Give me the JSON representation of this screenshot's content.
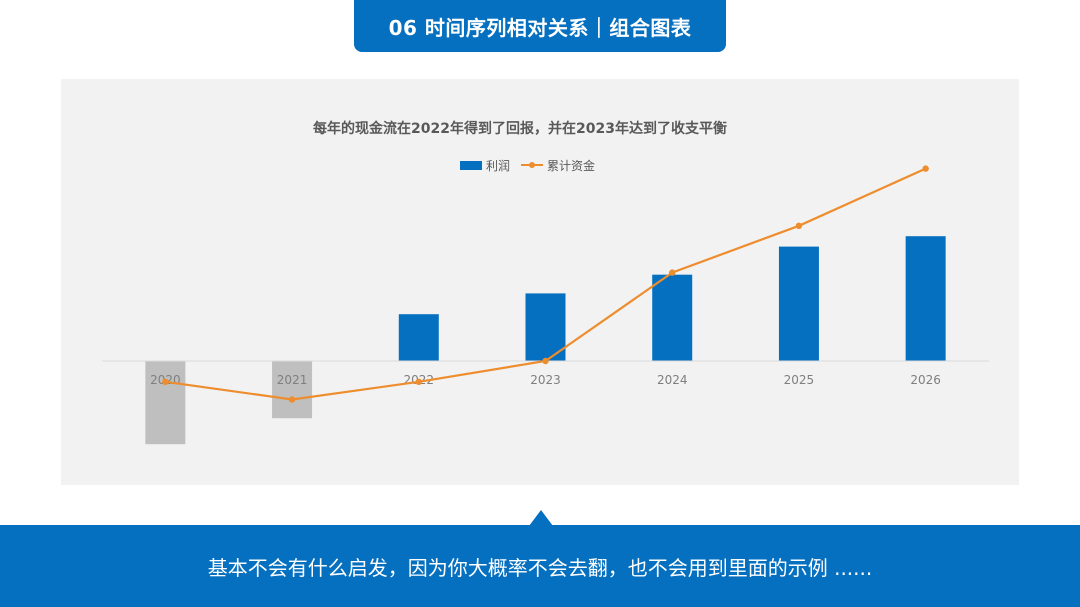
{
  "header": {
    "title": "06  时间序列相对关系｜组合图表"
  },
  "footer": {
    "text": "基本不会有什么启发，因为你大概率不会去翻，也不会用到里面的示例 ......"
  },
  "chart_data": {
    "type": "bar",
    "title": "每年的现金流在2022年得到了回报，并在2023年达到了收支平衡",
    "categories": [
      "2020",
      "2021",
      "2022",
      "2023",
      "2024",
      "2025",
      "2026"
    ],
    "series": [
      {
        "name": "利润",
        "type": "bar",
        "values": [
          -8,
          -5.5,
          4.5,
          6.5,
          8.3,
          11,
          12
        ],
        "color": "#0670c0",
        "negative_color": "#bfbfbf"
      },
      {
        "name": "累计资金",
        "type": "line",
        "values": [
          -2,
          -3.7,
          -2,
          0,
          8.5,
          13,
          18.5
        ],
        "color": "#ee8d2e"
      }
    ],
    "xlabel": "",
    "ylabel": "",
    "ylim": [
      -9,
      20
    ],
    "grid": false,
    "legend": "top-center"
  }
}
